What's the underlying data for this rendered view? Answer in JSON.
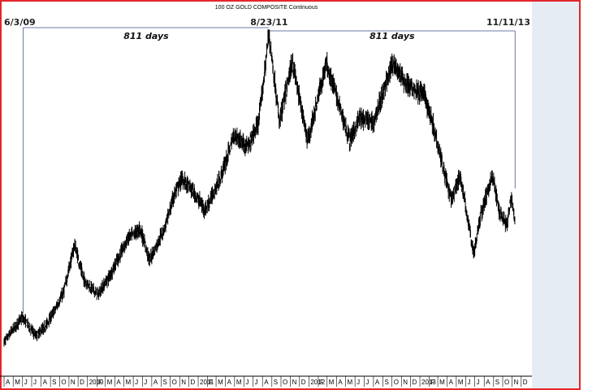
{
  "chart_data": {
    "type": "ohlc",
    "title": "100 OZ GOLD COMPOSITE Continuous",
    "annotations": [
      {
        "label": "6/3/09",
        "date": "2009-06-03"
      },
      {
        "label": "8/23/11",
        "date": "2011-08-23"
      },
      {
        "label": "11/11/13",
        "date": "2013-11-11"
      }
    ],
    "spans": [
      {
        "label": "811 days",
        "from": "2009-06-03",
        "to": "2011-08-23"
      },
      {
        "label": "811 days",
        "from": "2011-08-23",
        "to": "2013-11-11"
      }
    ],
    "x_tick_labels": [
      "A",
      "M",
      "J",
      "J",
      "A",
      "S",
      "O",
      "N",
      "D",
      "2010",
      "F",
      "M",
      "A",
      "M",
      "J",
      "J",
      "A",
      "S",
      "O",
      "N",
      "D",
      "2011",
      "F",
      "M",
      "A",
      "M",
      "J",
      "J",
      "A",
      "S",
      "O",
      "N",
      "D",
      "2012",
      "F",
      "M",
      "A",
      "M",
      "J",
      "J",
      "A",
      "S",
      "O",
      "N",
      "D",
      "2013",
      "F",
      "M",
      "A",
      "M",
      "J",
      "J",
      "A",
      "S",
      "O",
      "N",
      "D"
    ],
    "x_range": [
      "2009-04-01",
      "2013-12-31"
    ],
    "ylim": [
      800,
      1900
    ],
    "grid": false,
    "series": [
      {
        "values": [
          [
            "2009-04-01",
            900
          ],
          [
            "2009-06-01",
            980
          ],
          [
            "2009-07-15",
            920
          ],
          [
            "2009-08-15",
            950
          ],
          [
            "2009-09-15",
            1000
          ],
          [
            "2009-10-15",
            1060
          ],
          [
            "2009-11-20",
            1210
          ],
          [
            "2009-12-20",
            1100
          ],
          [
            "2010-02-05",
            1050
          ],
          [
            "2010-03-15",
            1110
          ],
          [
            "2010-05-15",
            1230
          ],
          [
            "2010-06-25",
            1260
          ],
          [
            "2010-07-25",
            1160
          ],
          [
            "2010-09-15",
            1270
          ],
          [
            "2010-10-15",
            1370
          ],
          [
            "2010-11-10",
            1420
          ],
          [
            "2010-12-15",
            1380
          ],
          [
            "2011-01-25",
            1320
          ],
          [
            "2011-03-15",
            1420
          ],
          [
            "2011-04-30",
            1560
          ],
          [
            "2011-06-15",
            1520
          ],
          [
            "2011-07-20",
            1600
          ],
          [
            "2011-08-23",
            1880
          ],
          [
            "2011-09-26",
            1600
          ],
          [
            "2011-11-08",
            1790
          ],
          [
            "2011-12-29",
            1540
          ],
          [
            "2012-02-28",
            1790
          ],
          [
            "2012-05-15",
            1540
          ],
          [
            "2012-06-15",
            1610
          ],
          [
            "2012-08-01",
            1600
          ],
          [
            "2012-10-05",
            1790
          ],
          [
            "2012-11-15",
            1720
          ],
          [
            "2013-01-15",
            1690
          ],
          [
            "2013-02-20",
            1570
          ],
          [
            "2013-04-15",
            1350
          ],
          [
            "2013-05-15",
            1430
          ],
          [
            "2013-06-28",
            1180
          ],
          [
            "2013-07-20",
            1300
          ],
          [
            "2013-08-28",
            1430
          ],
          [
            "2013-09-20",
            1320
          ],
          [
            "2013-10-15",
            1270
          ],
          [
            "2013-10-30",
            1360
          ],
          [
            "2013-11-11",
            1285
          ]
        ]
      }
    ]
  }
}
